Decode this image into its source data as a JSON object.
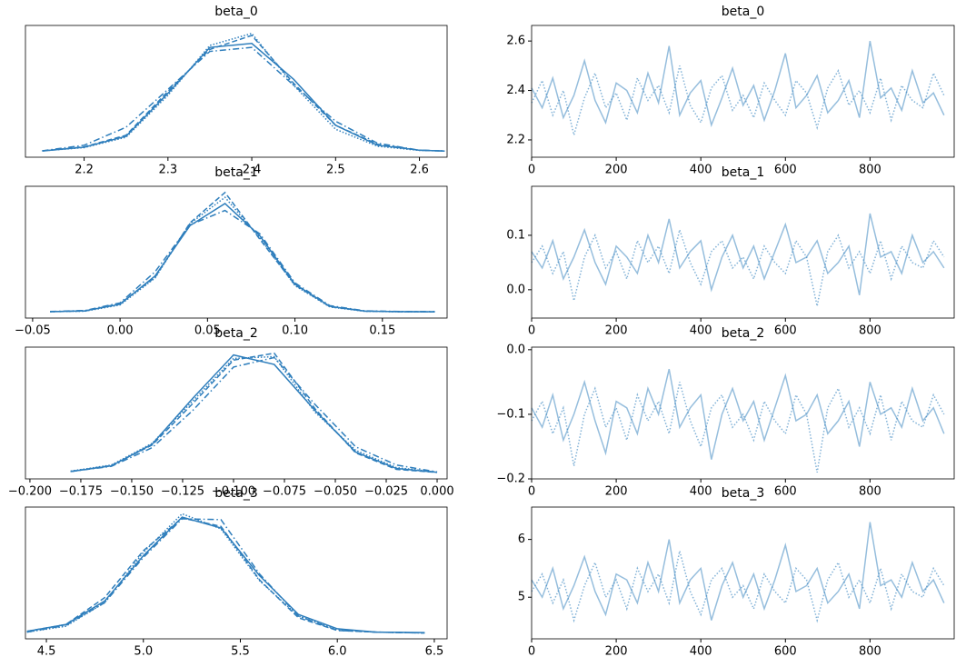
{
  "chart_data": [
    {
      "type": "line",
      "title": "beta_0",
      "x": [
        2.15,
        2.2,
        2.25,
        2.3,
        2.35,
        2.4,
        2.45,
        2.5,
        2.55,
        2.6,
        2.63
      ],
      "xlim": [
        2.13,
        2.633
      ],
      "ylim": [
        -0.3,
        6.3
      ],
      "xticks": [
        2.2,
        2.3,
        2.4,
        2.5,
        2.6
      ],
      "series": [
        {
          "color": "#2e7ebc",
          "linestyle": "solid",
          "values": [
            0.01,
            0.2,
            0.75,
            2.9,
            5.2,
            5.4,
            3.6,
            1.3,
            0.3,
            0.05,
            0.01
          ]
        },
        {
          "color": "#2e7ebc",
          "linestyle": "dotted",
          "values": [
            0.02,
            0.18,
            0.7,
            2.8,
            5.3,
            5.9,
            3.3,
            1.1,
            0.25,
            0.04,
            0.01
          ]
        },
        {
          "color": "#2e7ebc",
          "linestyle": "dashed",
          "values": [
            0.01,
            0.22,
            0.8,
            3.0,
            5.1,
            5.8,
            3.4,
            1.3,
            0.35,
            0.05,
            0.01
          ]
        },
        {
          "color": "#2e7ebc",
          "linestyle": "dashdot",
          "values": [
            0.02,
            0.3,
            1.2,
            3.1,
            5.0,
            5.2,
            3.3,
            1.5,
            0.4,
            0.05,
            0.01
          ]
        }
      ]
    },
    {
      "type": "line",
      "title": "beta_0",
      "x": [
        0,
        25,
        50,
        75,
        100,
        125,
        150,
        175,
        200,
        225,
        250,
        275,
        300,
        325,
        350,
        375,
        400,
        425,
        450,
        475,
        500,
        525,
        550,
        575,
        600,
        625,
        650,
        675,
        700,
        725,
        750,
        775,
        800,
        825,
        850,
        875,
        900,
        925,
        950,
        975
      ],
      "xlim": [
        0,
        999
      ],
      "ylim": [
        2.13,
        2.663
      ],
      "xticks": [
        0,
        200,
        400,
        600,
        800
      ],
      "yticks": [
        2.2,
        2.4,
        2.6
      ],
      "series": [
        {
          "color": "#2e7ebc",
          "linestyle": "solid",
          "opacity": 0.5,
          "values": [
            2.41,
            2.33,
            2.45,
            2.29,
            2.38,
            2.52,
            2.36,
            2.27,
            2.43,
            2.4,
            2.31,
            2.47,
            2.35,
            2.58,
            2.3,
            2.39,
            2.44,
            2.26,
            2.37,
            2.49,
            2.34,
            2.42,
            2.28,
            2.4,
            2.55,
            2.33,
            2.38,
            2.46,
            2.31,
            2.36,
            2.44,
            2.29,
            2.6,
            2.37,
            2.41,
            2.32,
            2.48,
            2.35,
            2.39,
            2.3
          ]
        },
        {
          "color": "#2e7ebc",
          "linestyle": "dotted",
          "opacity": 0.6,
          "values": [
            2.35,
            2.44,
            2.3,
            2.4,
            2.22,
            2.37,
            2.47,
            2.33,
            2.39,
            2.28,
            2.45,
            2.36,
            2.42,
            2.31,
            2.5,
            2.34,
            2.27,
            2.41,
            2.46,
            2.32,
            2.38,
            2.29,
            2.43,
            2.36,
            2.3,
            2.44,
            2.39,
            2.25,
            2.41,
            2.48,
            2.34,
            2.4,
            2.31,
            2.45,
            2.28,
            2.42,
            2.36,
            2.33,
            2.47,
            2.38
          ]
        }
      ]
    },
    {
      "type": "line",
      "title": "beta_1",
      "x": [
        -0.04,
        -0.02,
        0,
        0.02,
        0.04,
        0.06,
        0.08,
        0.1,
        0.12,
        0.14,
        0.16,
        0.18
      ],
      "xlim": [
        -0.0541,
        0.187
      ],
      "ylim": [
        -0.9,
        18.2
      ],
      "xticks": [
        {
          "value": -0.05,
          "label": "−0.05"
        },
        {
          "value": 0,
          "label": "0.00"
        },
        0.05,
        {
          "value": 0.1,
          "label": "0.10"
        },
        0.15
      ],
      "series": [
        {
          "color": "#2e7ebc",
          "linestyle": "solid",
          "values": [
            0.02,
            0.15,
            1.1,
            5.2,
            12.5,
            15.7,
            11.0,
            4.0,
            0.8,
            0.1,
            0.02,
            0.01
          ]
        },
        {
          "color": "#2e7ebc",
          "linestyle": "dotted",
          "values": [
            0.02,
            0.1,
            1.0,
            4.9,
            12.8,
            16.6,
            10.7,
            3.8,
            0.7,
            0.08,
            0.01,
            0.01
          ]
        },
        {
          "color": "#2e7ebc",
          "linestyle": "dashed",
          "values": [
            0.02,
            0.12,
            1.2,
            5.0,
            12.9,
            17.3,
            10.5,
            3.9,
            0.75,
            0.1,
            0.02,
            0.01
          ]
        },
        {
          "color": "#2e7ebc",
          "linestyle": "dashdot",
          "values": [
            0.05,
            0.2,
            1.3,
            5.8,
            12.6,
            14.7,
            11.3,
            4.2,
            0.9,
            0.15,
            0.05,
            0.03
          ]
        }
      ]
    },
    {
      "type": "line",
      "title": "beta_1",
      "x": [
        0,
        25,
        50,
        75,
        100,
        125,
        150,
        175,
        200,
        225,
        250,
        275,
        300,
        325,
        350,
        375,
        400,
        425,
        450,
        475,
        500,
        525,
        550,
        575,
        600,
        625,
        650,
        675,
        700,
        725,
        750,
        775,
        800,
        825,
        850,
        875,
        900,
        925,
        950,
        975
      ],
      "xlim": [
        0,
        999
      ],
      "ylim": [
        -0.052,
        0.19
      ],
      "xticks": [
        0,
        200,
        400,
        600,
        800
      ],
      "yticks": [
        {
          "value": 0,
          "label": "0.0"
        },
        0.1
      ],
      "series": [
        {
          "color": "#2e7ebc",
          "linestyle": "solid",
          "opacity": 0.5,
          "values": [
            0.07,
            0.04,
            0.09,
            0.02,
            0.06,
            0.11,
            0.05,
            0.01,
            0.08,
            0.06,
            0.03,
            0.1,
            0.05,
            0.13,
            0.04,
            0.07,
            0.09,
            0.0,
            0.06,
            0.1,
            0.04,
            0.08,
            0.02,
            0.07,
            0.12,
            0.05,
            0.06,
            0.09,
            0.03,
            0.05,
            0.08,
            -0.01,
            0.14,
            0.06,
            0.07,
            0.03,
            0.1,
            0.05,
            0.07,
            0.04
          ]
        },
        {
          "color": "#2e7ebc",
          "linestyle": "dotted",
          "opacity": 0.6,
          "values": [
            0.05,
            0.08,
            0.03,
            0.07,
            -0.02,
            0.06,
            0.1,
            0.04,
            0.07,
            0.02,
            0.09,
            0.05,
            0.08,
            0.03,
            0.11,
            0.05,
            0.01,
            0.07,
            0.09,
            0.04,
            0.06,
            0.02,
            0.08,
            0.05,
            0.03,
            0.09,
            0.06,
            -0.03,
            0.07,
            0.1,
            0.04,
            0.07,
            0.03,
            0.09,
            0.02,
            0.08,
            0.05,
            0.04,
            0.09,
            0.06
          ]
        }
      ]
    },
    {
      "type": "line",
      "title": "beta_2",
      "x": [
        -0.18,
        -0.16,
        -0.14,
        -0.12,
        -0.1,
        -0.08,
        -0.06,
        -0.04,
        -0.02,
        0.0
      ],
      "xlim": [
        -0.2022,
        0.0049
      ],
      "ylim": [
        -0.7,
        14.5
      ],
      "xticks": [
        {
          "value": -0.2,
          "label": "−0.200"
        },
        {
          "value": -0.175,
          "label": "−0.175"
        },
        {
          "value": -0.15,
          "label": "−0.150"
        },
        {
          "value": -0.125,
          "label": "−0.125"
        },
        {
          "value": -0.1,
          "label": "−0.100"
        },
        {
          "value": -0.075,
          "label": "−0.075"
        },
        {
          "value": -0.05,
          "label": "−0.050"
        },
        {
          "value": -0.025,
          "label": "−0.025"
        },
        {
          "value": 0,
          "label": "0.000"
        }
      ],
      "series": [
        {
          "color": "#2e7ebc",
          "linestyle": "solid",
          "values": [
            0.15,
            0.8,
            3.3,
            8.6,
            13.6,
            12.5,
            7.2,
            2.4,
            0.5,
            0.06
          ]
        },
        {
          "color": "#2e7ebc",
          "linestyle": "dotted",
          "values": [
            0.2,
            0.9,
            3.4,
            8.3,
            13.2,
            13.4,
            7.0,
            2.6,
            0.6,
            0.08
          ]
        },
        {
          "color": "#2e7ebc",
          "linestyle": "dashed",
          "values": [
            0.15,
            0.85,
            3.2,
            8.0,
            13.0,
            13.8,
            7.4,
            2.3,
            0.4,
            0.05
          ]
        },
        {
          "color": "#2e7ebc",
          "linestyle": "dashdot",
          "values": [
            0.15,
            0.75,
            2.9,
            7.2,
            12.2,
            13.3,
            7.9,
            3.0,
            0.9,
            0.1
          ]
        }
      ]
    },
    {
      "type": "line",
      "title": "beta_2",
      "x": [
        0,
        25,
        50,
        75,
        100,
        125,
        150,
        175,
        200,
        225,
        250,
        275,
        300,
        325,
        350,
        375,
        400,
        425,
        450,
        475,
        500,
        525,
        550,
        575,
        600,
        625,
        650,
        675,
        700,
        725,
        750,
        775,
        800,
        825,
        850,
        875,
        900,
        925,
        950,
        975
      ],
      "xlim": [
        0,
        999
      ],
      "ylim": [
        -0.2,
        0.004
      ],
      "xticks": [
        0,
        200,
        400,
        600,
        800
      ],
      "yticks": [
        {
          "value": -0.2,
          "label": "−0.2"
        },
        {
          "value": -0.1,
          "label": "−0.1"
        },
        {
          "value": 0,
          "label": "0.0"
        }
      ],
      "series": [
        {
          "color": "#2e7ebc",
          "linestyle": "solid",
          "opacity": 0.5,
          "values": [
            -0.09,
            -0.12,
            -0.07,
            -0.14,
            -0.1,
            -0.05,
            -0.11,
            -0.16,
            -0.08,
            -0.09,
            -0.13,
            -0.06,
            -0.1,
            -0.03,
            -0.12,
            -0.09,
            -0.07,
            -0.17,
            -0.1,
            -0.06,
            -0.11,
            -0.08,
            -0.14,
            -0.09,
            -0.04,
            -0.11,
            -0.1,
            -0.07,
            -0.13,
            -0.11,
            -0.08,
            -0.15,
            -0.05,
            -0.1,
            -0.09,
            -0.12,
            -0.06,
            -0.11,
            -0.09,
            -0.13
          ]
        },
        {
          "color": "#2e7ebc",
          "linestyle": "dotted",
          "opacity": 0.6,
          "values": [
            -0.11,
            -0.08,
            -0.13,
            -0.09,
            -0.18,
            -0.1,
            -0.06,
            -0.12,
            -0.09,
            -0.14,
            -0.07,
            -0.11,
            -0.08,
            -0.13,
            -0.05,
            -0.11,
            -0.15,
            -0.09,
            -0.07,
            -0.12,
            -0.1,
            -0.14,
            -0.08,
            -0.11,
            -0.13,
            -0.07,
            -0.1,
            -0.19,
            -0.09,
            -0.06,
            -0.12,
            -0.09,
            -0.13,
            -0.07,
            -0.14,
            -0.08,
            -0.11,
            -0.12,
            -0.07,
            -0.1
          ]
        }
      ]
    },
    {
      "type": "line",
      "title": "beta_3",
      "x": [
        4.4,
        4.6,
        4.8,
        5.0,
        5.2,
        5.4,
        5.6,
        5.8,
        6.0,
        6.2,
        6.45
      ],
      "xlim": [
        4.392,
        6.566
      ],
      "ylim": [
        -0.07,
        1.5
      ],
      "xticks": [
        4.5,
        {
          "value": 5,
          "label": "5.0"
        },
        5.5,
        {
          "value": 6,
          "label": "6.0"
        },
        6.5
      ],
      "series": [
        {
          "color": "#2e7ebc",
          "linestyle": "solid",
          "values": [
            0.02,
            0.1,
            0.38,
            0.92,
            1.38,
            1.25,
            0.68,
            0.22,
            0.05,
            0.01,
            0.005
          ]
        },
        {
          "color": "#2e7ebc",
          "linestyle": "dotted",
          "values": [
            0.01,
            0.08,
            0.36,
            0.96,
            1.42,
            1.24,
            0.62,
            0.2,
            0.04,
            0.01,
            0
          ]
        },
        {
          "color": "#2e7ebc",
          "linestyle": "dashed",
          "values": [
            0.02,
            0.1,
            0.42,
            0.98,
            1.37,
            1.27,
            0.63,
            0.18,
            0.03,
            0.01,
            0
          ]
        },
        {
          "color": "#2e7ebc",
          "linestyle": "dashdot",
          "values": [
            0.01,
            0.09,
            0.36,
            0.9,
            1.36,
            1.35,
            0.7,
            0.2,
            0.03,
            0.01,
            0
          ]
        }
      ]
    },
    {
      "type": "line",
      "title": "beta_3",
      "x": [
        0,
        25,
        50,
        75,
        100,
        125,
        150,
        175,
        200,
        225,
        250,
        275,
        300,
        325,
        350,
        375,
        400,
        425,
        450,
        475,
        500,
        525,
        550,
        575,
        600,
        625,
        650,
        675,
        700,
        725,
        750,
        775,
        800,
        825,
        850,
        875,
        900,
        925,
        950,
        975
      ],
      "xlim": [
        0,
        999
      ],
      "ylim": [
        4.28,
        6.56
      ],
      "xticks": [
        0,
        200,
        400,
        600,
        800
      ],
      "yticks": [
        5,
        6
      ],
      "series": [
        {
          "color": "#2e7ebc",
          "linestyle": "solid",
          "opacity": 0.5,
          "values": [
            5.3,
            5.0,
            5.5,
            4.8,
            5.2,
            5.7,
            5.1,
            4.7,
            5.4,
            5.3,
            4.9,
            5.6,
            5.1,
            6.0,
            4.9,
            5.3,
            5.5,
            4.6,
            5.2,
            5.6,
            5.0,
            5.4,
            4.8,
            5.3,
            5.9,
            5.1,
            5.2,
            5.5,
            4.9,
            5.1,
            5.4,
            4.8,
            6.3,
            5.2,
            5.3,
            5.0,
            5.6,
            5.1,
            5.3,
            4.9
          ]
        },
        {
          "color": "#2e7ebc",
          "linestyle": "dotted",
          "opacity": 0.6,
          "values": [
            5.1,
            5.4,
            4.9,
            5.3,
            4.6,
            5.2,
            5.6,
            5.0,
            5.3,
            4.8,
            5.5,
            5.1,
            5.4,
            4.9,
            5.8,
            5.1,
            4.7,
            5.3,
            5.5,
            5.0,
            5.2,
            4.8,
            5.4,
            5.1,
            4.9,
            5.5,
            5.3,
            4.6,
            5.3,
            5.6,
            5.0,
            5.3,
            4.9,
            5.5,
            4.8,
            5.4,
            5.1,
            5.0,
            5.5,
            5.2
          ]
        }
      ]
    }
  ]
}
